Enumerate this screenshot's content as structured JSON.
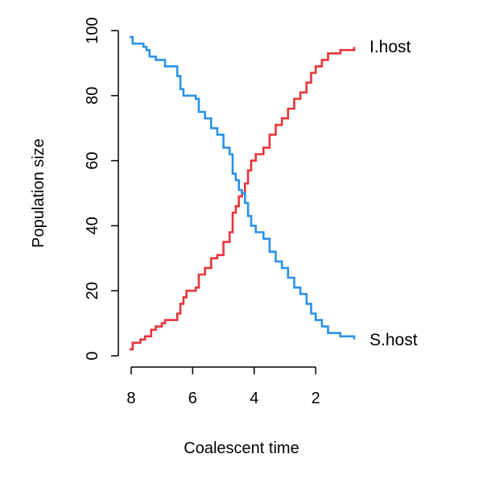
{
  "chart_data": {
    "type": "line",
    "title": "",
    "xlabel": "Coalescent time",
    "ylabel": "Population size",
    "xlim": [
      8.05,
      0.75
    ],
    "ylim": [
      0,
      100
    ],
    "x_reversed": true,
    "xticks": [
      8,
      6,
      4,
      2
    ],
    "yticks": [
      0,
      20,
      40,
      60,
      80,
      100
    ],
    "grid": false,
    "legend": "none (direct labels at right end of each line)",
    "series": [
      {
        "name": "I.host",
        "color": "#e8343a",
        "step": true,
        "points": [
          [
            8.05,
            2
          ],
          [
            7.95,
            4
          ],
          [
            7.7,
            5
          ],
          [
            7.55,
            6
          ],
          [
            7.35,
            8
          ],
          [
            7.2,
            9
          ],
          [
            7.0,
            10
          ],
          [
            6.9,
            11
          ],
          [
            6.6,
            11
          ],
          [
            6.5,
            13
          ],
          [
            6.4,
            16
          ],
          [
            6.3,
            18
          ],
          [
            6.2,
            20
          ],
          [
            5.9,
            21
          ],
          [
            5.8,
            25
          ],
          [
            5.6,
            27
          ],
          [
            5.4,
            30
          ],
          [
            5.2,
            31
          ],
          [
            5.0,
            35
          ],
          [
            4.8,
            38
          ],
          [
            4.7,
            44
          ],
          [
            4.6,
            46
          ],
          [
            4.5,
            49
          ],
          [
            4.4,
            50
          ],
          [
            4.3,
            53
          ],
          [
            4.2,
            57
          ],
          [
            4.1,
            60
          ],
          [
            3.95,
            62
          ],
          [
            3.7,
            64
          ],
          [
            3.5,
            68
          ],
          [
            3.3,
            71
          ],
          [
            3.1,
            73
          ],
          [
            2.9,
            76
          ],
          [
            2.7,
            79
          ],
          [
            2.5,
            81
          ],
          [
            2.3,
            84
          ],
          [
            2.15,
            87
          ],
          [
            2.0,
            89
          ],
          [
            1.8,
            91
          ],
          [
            1.6,
            93
          ],
          [
            1.2,
            94
          ],
          [
            0.75,
            95
          ]
        ]
      },
      {
        "name": "S.host",
        "color": "#2b91e8",
        "step": true,
        "points": [
          [
            8.05,
            98
          ],
          [
            7.95,
            96
          ],
          [
            7.6,
            95
          ],
          [
            7.5,
            94
          ],
          [
            7.4,
            92
          ],
          [
            7.2,
            91
          ],
          [
            6.9,
            89
          ],
          [
            6.6,
            89
          ],
          [
            6.5,
            86
          ],
          [
            6.4,
            82
          ],
          [
            6.3,
            80
          ],
          [
            5.9,
            79
          ],
          [
            5.8,
            75
          ],
          [
            5.6,
            73
          ],
          [
            5.4,
            70
          ],
          [
            5.2,
            68
          ],
          [
            5.0,
            64
          ],
          [
            4.8,
            62
          ],
          [
            4.7,
            56
          ],
          [
            4.6,
            54
          ],
          [
            4.5,
            51
          ],
          [
            4.4,
            50
          ],
          [
            4.3,
            47
          ],
          [
            4.2,
            43
          ],
          [
            4.1,
            40
          ],
          [
            3.95,
            38
          ],
          [
            3.7,
            36
          ],
          [
            3.5,
            32
          ],
          [
            3.3,
            29
          ],
          [
            3.1,
            27
          ],
          [
            2.9,
            24
          ],
          [
            2.7,
            21
          ],
          [
            2.5,
            19
          ],
          [
            2.3,
            16
          ],
          [
            2.15,
            13
          ],
          [
            2.0,
            11
          ],
          [
            1.8,
            9
          ],
          [
            1.6,
            7
          ],
          [
            1.2,
            6
          ],
          [
            0.75,
            5
          ]
        ]
      }
    ]
  }
}
